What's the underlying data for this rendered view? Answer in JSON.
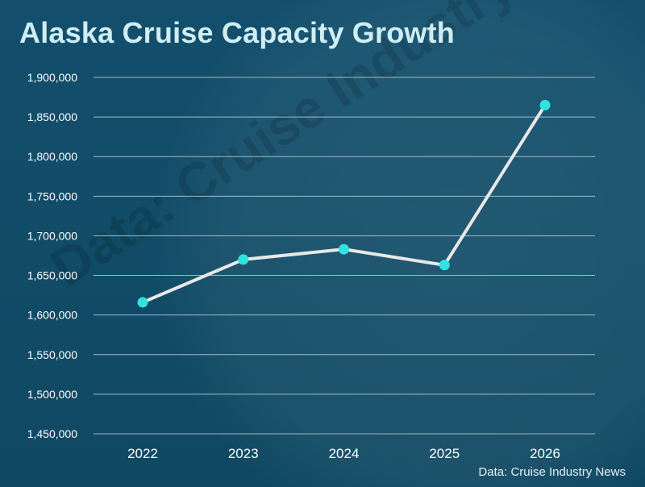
{
  "chart_data": {
    "type": "line",
    "title": "Alaska Cruise Capacity Growth",
    "source": "Data: Cruise Industry News",
    "watermark": "Data: Cruise Industry News",
    "categories": [
      "2022",
      "2023",
      "2024",
      "2025",
      "2026"
    ],
    "series": [
      {
        "values": [
          1616000,
          1670000,
          1683000,
          1663000,
          1865000
        ]
      }
    ],
    "ylim": [
      1450000,
      1900000
    ],
    "yticks": [
      "1,450,000",
      "1,500,000",
      "1,550,000",
      "1,600,000",
      "1,650,000",
      "1,700,000",
      "1,750,000",
      "1,800,000",
      "1,850,000",
      "1,900,000"
    ],
    "ytick_values": [
      1450000,
      1500000,
      1550000,
      1600000,
      1650000,
      1700000,
      1750000,
      1800000,
      1850000,
      1900000
    ],
    "grid": true,
    "colors": {
      "line": "#e8e8e8",
      "marker": "#2fe3e0",
      "grid": "#b9cdd6",
      "tick_text": "#ffffff",
      "title": "#cfeef3"
    }
  }
}
